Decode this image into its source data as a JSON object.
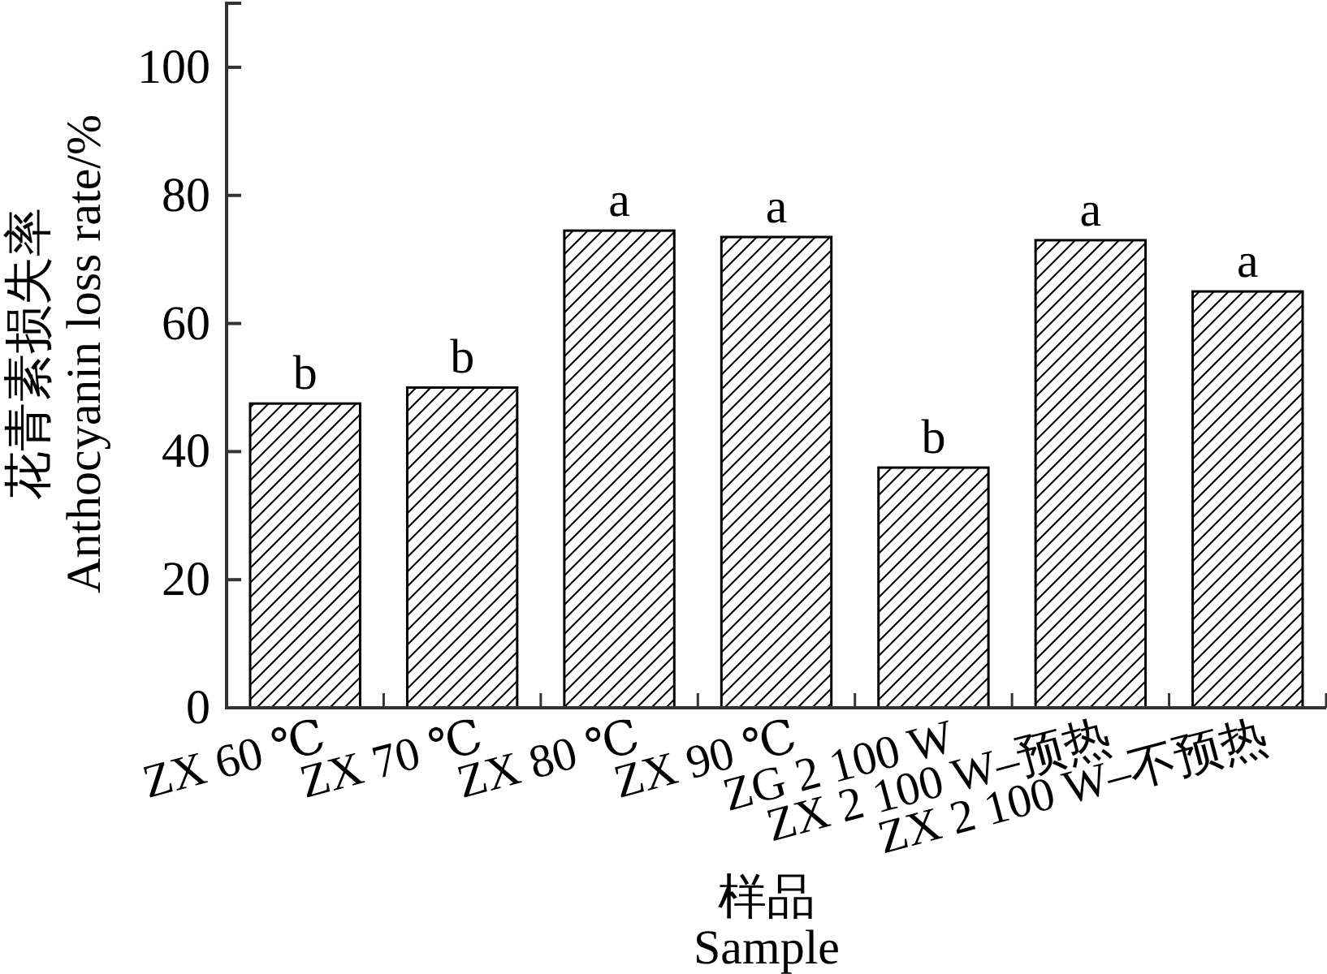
{
  "chart_data": {
    "type": "bar",
    "categories": [
      "ZX 60 ℃",
      "ZX 70 ℃",
      "ZX 80 ℃",
      "ZX 90 ℃",
      "ZG 2 100 W",
      "ZX 2 100 W–预热",
      "ZX 2 100 W–不预热"
    ],
    "values": [
      47.5,
      50,
      74.5,
      73.5,
      37.5,
      73,
      65
    ],
    "color": "#000000",
    "xlabel": "样品\nSample",
    "ylabel": "花青素损失率\nAnthocyanin loss rate/%",
    "ylim": [
      0,
      110
    ],
    "yticks": [
      0,
      20,
      40,
      60,
      80,
      100
    ],
    "annotations": [
      {
        "text": "b",
        "x": "ZX 60 ℃",
        "y": 47.5
      },
      {
        "text": "b",
        "x": "ZX 70 ℃",
        "y": 50
      },
      {
        "text": "a",
        "x": "ZX 80 ℃",
        "y": 74.5
      },
      {
        "text": "a",
        "x": "ZX 90 ℃",
        "y": 73.5
      },
      {
        "text": "b",
        "x": "ZG 2 100 W",
        "y": 37.5
      },
      {
        "text": "a",
        "x": "ZX 2 100 W–预热",
        "y": 73
      },
      {
        "text": "a",
        "x": "ZX 2 100 W–不预热",
        "y": 65
      }
    ]
  }
}
